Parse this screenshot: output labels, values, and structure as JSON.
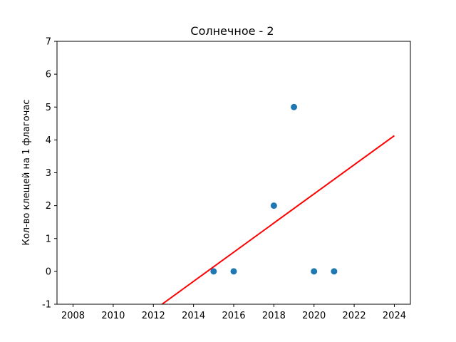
{
  "chart_data": {
    "type": "scatter",
    "title": "Солнечное - 2",
    "xlabel": "",
    "ylabel": "Кол-во клещей на 1 флагочас",
    "xlim": [
      2007.2,
      2024.8
    ],
    "ylim": [
      -1,
      7
    ],
    "xticks": [
      2008,
      2010,
      2012,
      2014,
      2016,
      2018,
      2020,
      2022,
      2024
    ],
    "yticks": [
      -1,
      0,
      1,
      2,
      3,
      4,
      5,
      6,
      7
    ],
    "grid": false,
    "series": [
      {
        "kind": "scatter",
        "color": "#1f77b4",
        "points": [
          {
            "x": 2015,
            "y": 0
          },
          {
            "x": 2016,
            "y": 0
          },
          {
            "x": 2018,
            "y": 2
          },
          {
            "x": 2019,
            "y": 5
          },
          {
            "x": 2020,
            "y": 0
          },
          {
            "x": 2021,
            "y": 0
          }
        ]
      },
      {
        "kind": "line",
        "color": "#ff0000",
        "points": [
          {
            "x": 2012.43,
            "y": -1
          },
          {
            "x": 2024,
            "y": 4.13
          }
        ]
      }
    ]
  }
}
